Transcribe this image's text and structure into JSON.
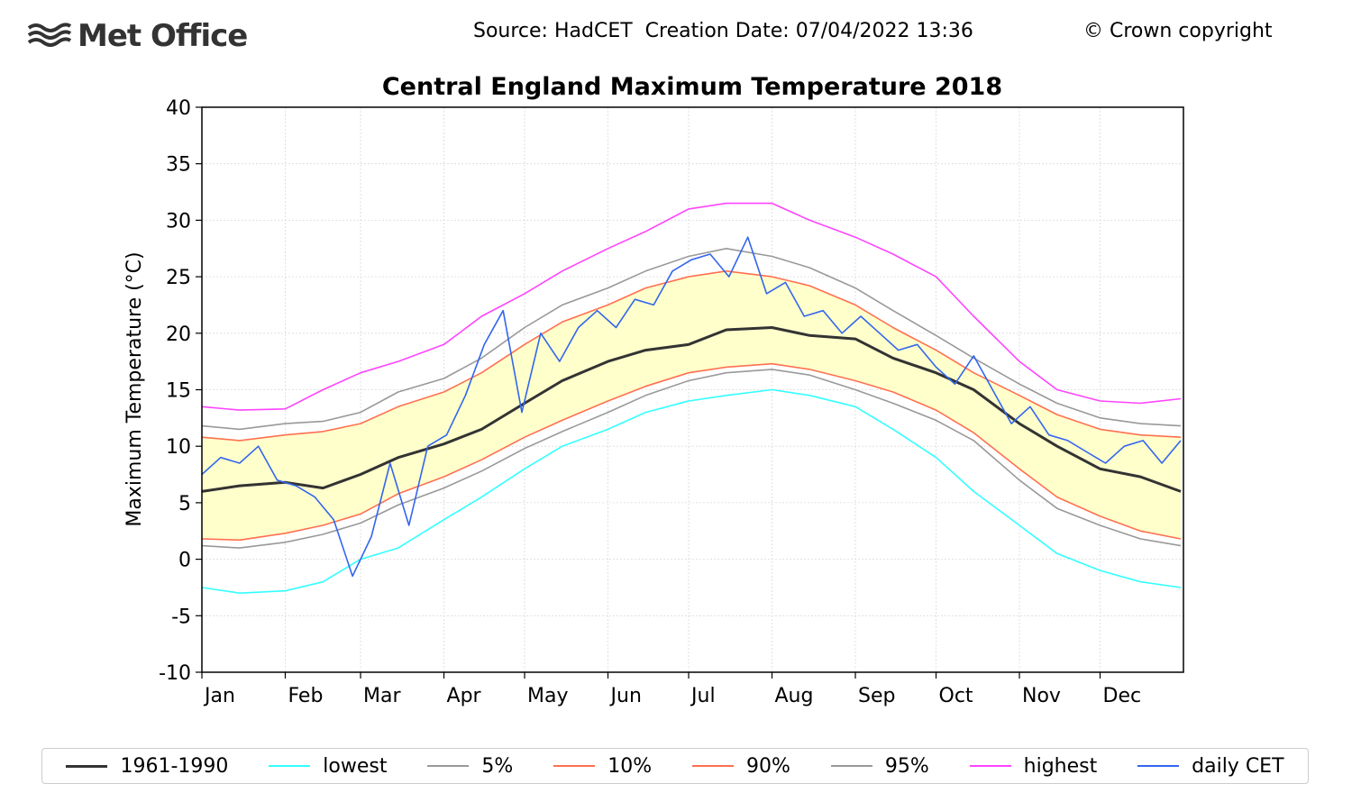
{
  "header": {
    "logo_text": "Met Office",
    "source_line": "Source: HadCET  Creation Date: 07/04/2022 13:36",
    "copyright": "© Crown copyright"
  },
  "chart_data": {
    "type": "line",
    "title": "Central England Maximum Temperature 2018",
    "xlabel": "",
    "ylabel": "Maximum Temperature (°C)",
    "ylim": [
      -10,
      40
    ],
    "yticks": [
      -10,
      -5,
      0,
      5,
      10,
      15,
      20,
      25,
      30,
      35,
      40
    ],
    "xlim": [
      1,
      366
    ],
    "months": [
      "Jan",
      "Feb",
      "Mar",
      "Apr",
      "May",
      "Jun",
      "Jul",
      "Aug",
      "Sep",
      "Oct",
      "Nov",
      "Dec"
    ],
    "month_start_days": [
      1,
      32,
      60,
      91,
      121,
      152,
      182,
      213,
      244,
      274,
      305,
      335
    ],
    "grid": true,
    "band_fill": "#ffffcc",
    "legend_position": "bottom",
    "series": [
      {
        "name": "1961-1990",
        "color": "#333333",
        "x": [
          1,
          15,
          32,
          46,
          60,
          74,
          91,
          105,
          121,
          135,
          152,
          166,
          182,
          196,
          213,
          227,
          244,
          258,
          274,
          288,
          305,
          319,
          335,
          350,
          365
        ],
        "values": [
          6.0,
          6.5,
          6.8,
          6.3,
          7.5,
          9.0,
          10.2,
          11.5,
          13.8,
          15.8,
          17.5,
          18.5,
          19.0,
          20.3,
          20.5,
          19.8,
          19.5,
          17.8,
          16.5,
          15.0,
          12.0,
          10.0,
          8.0,
          7.3,
          6.0
        ]
      },
      {
        "name": "lowest",
        "color": "#33ffff",
        "x": [
          1,
          15,
          32,
          46,
          60,
          74,
          91,
          105,
          121,
          135,
          152,
          166,
          182,
          196,
          213,
          227,
          244,
          258,
          274,
          288,
          305,
          319,
          335,
          350,
          365
        ],
        "values": [
          -2.5,
          -3.0,
          -2.8,
          -2.0,
          0.0,
          1.0,
          3.5,
          5.5,
          8.0,
          10.0,
          11.5,
          13.0,
          14.0,
          14.5,
          15.0,
          14.5,
          13.5,
          11.5,
          9.0,
          6.0,
          3.0,
          0.5,
          -1.0,
          -2.0,
          -2.5
        ]
      },
      {
        "name": "5%",
        "color": "#999999",
        "x": [
          1,
          15,
          32,
          46,
          60,
          74,
          91,
          105,
          121,
          135,
          152,
          166,
          182,
          196,
          213,
          227,
          244,
          258,
          274,
          288,
          305,
          319,
          335,
          350,
          365
        ],
        "values": [
          1.2,
          1.0,
          1.5,
          2.2,
          3.2,
          4.8,
          6.3,
          7.8,
          9.8,
          11.3,
          13.0,
          14.5,
          15.8,
          16.5,
          16.8,
          16.3,
          15.0,
          13.8,
          12.3,
          10.5,
          7.0,
          4.5,
          3.0,
          1.8,
          1.2
        ]
      },
      {
        "name": "10%",
        "color": "#ff7050",
        "x": [
          1,
          15,
          32,
          46,
          60,
          74,
          91,
          105,
          121,
          135,
          152,
          166,
          182,
          196,
          213,
          227,
          244,
          258,
          274,
          288,
          305,
          319,
          335,
          350,
          365
        ],
        "values": [
          1.8,
          1.7,
          2.3,
          3.0,
          4.0,
          5.8,
          7.3,
          8.8,
          10.8,
          12.3,
          14.0,
          15.3,
          16.5,
          17.0,
          17.3,
          16.8,
          15.8,
          14.8,
          13.2,
          11.2,
          8.0,
          5.5,
          3.8,
          2.5,
          1.8
        ]
      },
      {
        "name": "90%",
        "color": "#ff7050",
        "x": [
          1,
          15,
          32,
          46,
          60,
          74,
          91,
          105,
          121,
          135,
          152,
          166,
          182,
          196,
          213,
          227,
          244,
          258,
          274,
          288,
          305,
          319,
          335,
          350,
          365
        ],
        "values": [
          10.8,
          10.5,
          11.0,
          11.3,
          12.0,
          13.5,
          14.8,
          16.5,
          19.0,
          21.0,
          22.5,
          24.0,
          25.0,
          25.5,
          25.0,
          24.2,
          22.5,
          20.5,
          18.5,
          16.5,
          14.5,
          12.8,
          11.5,
          11.0,
          10.8
        ]
      },
      {
        "name": "95%",
        "color": "#999999",
        "x": [
          1,
          15,
          32,
          46,
          60,
          74,
          91,
          105,
          121,
          135,
          152,
          166,
          182,
          196,
          213,
          227,
          244,
          258,
          274,
          288,
          305,
          319,
          335,
          350,
          365
        ],
        "values": [
          11.8,
          11.5,
          12.0,
          12.2,
          13.0,
          14.8,
          16.0,
          17.8,
          20.5,
          22.5,
          24.0,
          25.5,
          26.8,
          27.5,
          26.8,
          25.8,
          24.0,
          22.0,
          19.8,
          17.8,
          15.5,
          13.8,
          12.5,
          12.0,
          11.8
        ]
      },
      {
        "name": "highest",
        "color": "#ff44ff",
        "x": [
          1,
          15,
          32,
          46,
          60,
          74,
          91,
          105,
          121,
          135,
          152,
          166,
          182,
          196,
          213,
          227,
          244,
          258,
          274,
          288,
          305,
          319,
          335,
          350,
          365
        ],
        "values": [
          13.5,
          13.2,
          13.3,
          15.0,
          16.5,
          17.5,
          19.0,
          21.5,
          23.5,
          25.5,
          27.5,
          29.0,
          31.0,
          31.5,
          31.5,
          30.0,
          28.5,
          27.0,
          25.0,
          21.5,
          17.5,
          15.0,
          14.0,
          13.8,
          14.2
        ]
      },
      {
        "name": "daily CET",
        "color": "#3366ee",
        "x": [
          1,
          8,
          15,
          22,
          29,
          36,
          43,
          50,
          57,
          64,
          71,
          78,
          85,
          92,
          99,
          106,
          113,
          120,
          127,
          134,
          141,
          148,
          155,
          162,
          169,
          176,
          183,
          190,
          197,
          204,
          211,
          218,
          225,
          232,
          239,
          246,
          253,
          260,
          267,
          274,
          281,
          288,
          295,
          302,
          309,
          316,
          323,
          330,
          337,
          344,
          351,
          358,
          365
        ],
        "values": [
          7.5,
          9.0,
          8.5,
          10.0,
          7.0,
          6.5,
          5.5,
          3.5,
          -1.5,
          2.0,
          8.5,
          3.0,
          10.0,
          11.0,
          14.5,
          19.0,
          22.0,
          13.0,
          20.0,
          17.5,
          20.5,
          22.0,
          20.5,
          23.0,
          22.5,
          25.5,
          26.5,
          27.0,
          25.0,
          28.5,
          23.5,
          24.5,
          21.5,
          22.0,
          20.0,
          21.5,
          20.0,
          18.5,
          19.0,
          17.0,
          15.5,
          18.0,
          15.0,
          12.0,
          13.5,
          11.0,
          10.5,
          9.5,
          8.5,
          10.0,
          10.5,
          8.5,
          10.5
        ]
      }
    ],
    "legend": [
      "1961-1990",
      "lowest",
      "5%",
      "10%",
      "90%",
      "95%",
      "highest",
      "daily CET"
    ]
  }
}
